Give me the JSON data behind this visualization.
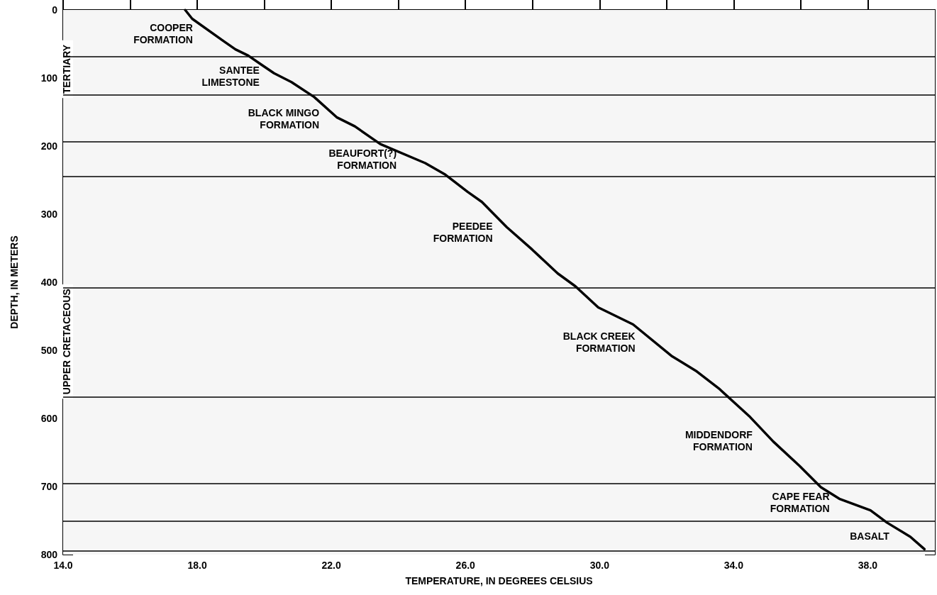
{
  "chart_data": {
    "type": "line",
    "xlabel": "TEMPERATURE, IN DEGREES CELSIUS",
    "ylabel": "DEPTH, IN METERS",
    "x": [
      17.64,
      17.85,
      18.76,
      19.14,
      19.52,
      19.9,
      20.29,
      20.81,
      21.49,
      22.17,
      22.7,
      23.46,
      24.8,
      25.4,
      26.06,
      26.49,
      27.23,
      27.99,
      28.75,
      29.28,
      29.96,
      31.0,
      32.14,
      32.9,
      33.58,
      34.49,
      35.18,
      35.97,
      36.6,
      37.15,
      38.08,
      38.57,
      39.27,
      39.69
    ],
    "values": [
      0,
      13,
      45,
      58,
      67,
      80,
      93,
      106,
      128,
      158,
      171,
      197,
      225,
      242,
      267,
      282,
      319,
      352,
      387,
      406,
      437,
      462,
      508,
      531,
      557,
      598,
      634,
      670,
      701,
      718,
      735,
      753,
      774,
      792
    ],
    "color": "#000000",
    "marker": "none",
    "line_style": "solid",
    "grid": false,
    "xlim": [
      14,
      40
    ],
    "ylim": [
      800,
      0
    ],
    "xticks": [
      {
        "value": 14,
        "label": "14.0"
      },
      {
        "value": 16,
        "label": null
      },
      {
        "value": 18,
        "label": "18.0"
      },
      {
        "value": 20,
        "label": null
      },
      {
        "value": 22,
        "label": "22.0"
      },
      {
        "value": 24,
        "label": null
      },
      {
        "value": 26,
        "label": "26.0"
      },
      {
        "value": 28,
        "label": null
      },
      {
        "value": 30,
        "label": "30.0"
      },
      {
        "value": 32,
        "label": null
      },
      {
        "value": 34,
        "label": "34.0"
      },
      {
        "value": 36,
        "label": null
      },
      {
        "value": 38,
        "label": "38.0"
      }
    ],
    "yticks": [
      0,
      100,
      200,
      300,
      400,
      500,
      600,
      700,
      800
    ],
    "ref_lines": [
      {
        "axis": "y",
        "value": 69
      },
      {
        "axis": "y",
        "value": 125
      },
      {
        "axis": "y",
        "value": 194
      },
      {
        "axis": "y",
        "value": 245
      },
      {
        "axis": "y",
        "value": 408
      },
      {
        "axis": "y",
        "value": 569
      },
      {
        "axis": "y",
        "value": 696
      },
      {
        "axis": "y",
        "value": 751
      },
      {
        "axis": "y",
        "value": 795
      }
    ],
    "bands": [
      {
        "axis": "y",
        "from": 0,
        "to": 245,
        "label": "TERTIARY",
        "color": "#f6f6f6"
      },
      {
        "axis": "y",
        "from": 245,
        "to": 800,
        "label": "UPPER CRETACEOUS",
        "color": "#f6f6f6"
      }
    ],
    "annotations": [
      "COOPER\nFORMATION",
      "SANTEE\nLIMESTONE",
      "BLACK MINGO\nFORMATION",
      "BEAUFORT(?)\nFORMATION",
      "PEEDEE\nFORMATION",
      "BLACK CREEK\nFORMATION",
      "MIDDENDORF\nFORMATION",
      "CAPE FEAR\nFORMATION",
      "BASALT"
    ]
  }
}
